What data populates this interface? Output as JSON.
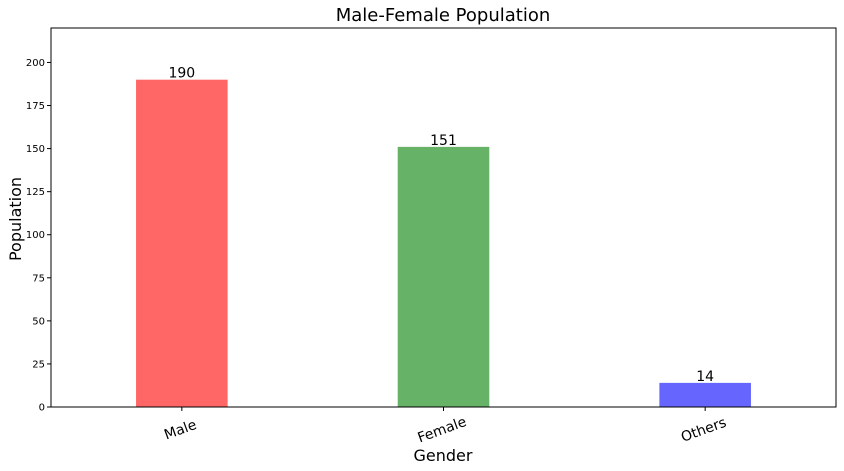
{
  "chart_data": {
    "type": "bar",
    "title": "Male-Female Population",
    "xlabel": "Gender",
    "ylabel": "Population",
    "categories": [
      "Male",
      "Female",
      "Others"
    ],
    "values": [
      190,
      151,
      14
    ],
    "data_labels": [
      "190",
      "151",
      "14"
    ],
    "colors": [
      "#ff6666",
      "#66b266",
      "#6666ff"
    ],
    "ylim": [
      0,
      220
    ],
    "yticks": [
      0,
      25,
      50,
      75,
      100,
      125,
      150,
      175,
      200
    ],
    "ytick_labels": [
      "0",
      "25",
      "50",
      "75",
      "100",
      "125",
      "150",
      "175",
      "200"
    ],
    "x_tick_rotation_deg": -20,
    "grid": false,
    "legend": "none"
  }
}
